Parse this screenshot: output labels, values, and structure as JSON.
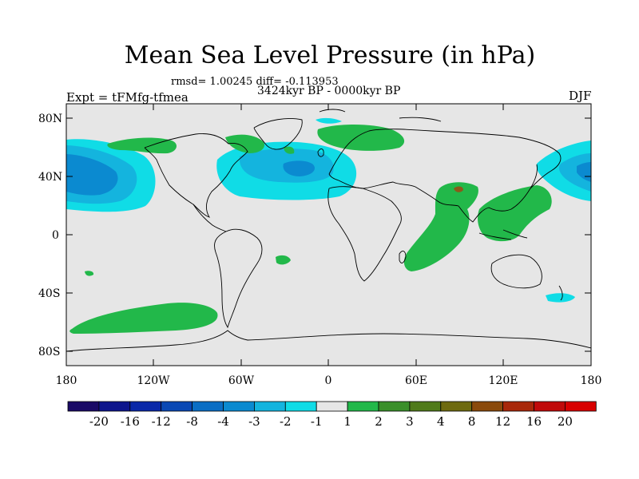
{
  "title": "Mean Sea Level Pressure (in hPa)",
  "stats": "rmsd= 1.00245 diff= -0.113953",
  "period": "3424kyr BP - 0000kyr BP",
  "experiment": "Expt = tFMfg-tfmea",
  "season": "DJF",
  "lat_labels": [
    "80N",
    "40N",
    "0",
    "40S",
    "80S"
  ],
  "lon_labels": [
    "180",
    "120W",
    "60W",
    "0",
    "60E",
    "120E",
    "180"
  ],
  "colorbar": {
    "labels": [
      "-20",
      "-16",
      "-12",
      "-8",
      "-4",
      "-3",
      "-2",
      "-1",
      "1",
      "2",
      "3",
      "4",
      "8",
      "12",
      "16",
      "20"
    ],
    "colors": [
      "#1a0a66",
      "#0e168c",
      "#0a28a8",
      "#0a48b4",
      "#0b6ec4",
      "#0b8ad0",
      "#14b4de",
      "#10dce6",
      "#e6e6e6",
      "#22b84a",
      "#3a8f2a",
      "#4f7a1a",
      "#6e6a10",
      "#8a4a0c",
      "#a8280a",
      "#c00a0a",
      "#d80000"
    ]
  },
  "colors": {
    "background_zero": "#e6e6e6",
    "neg1": "#10dce6",
    "neg2": "#14b4de",
    "neg3": "#0b8ad0",
    "pos1": "#22b84a",
    "pos4": "#8a5a1a"
  }
}
